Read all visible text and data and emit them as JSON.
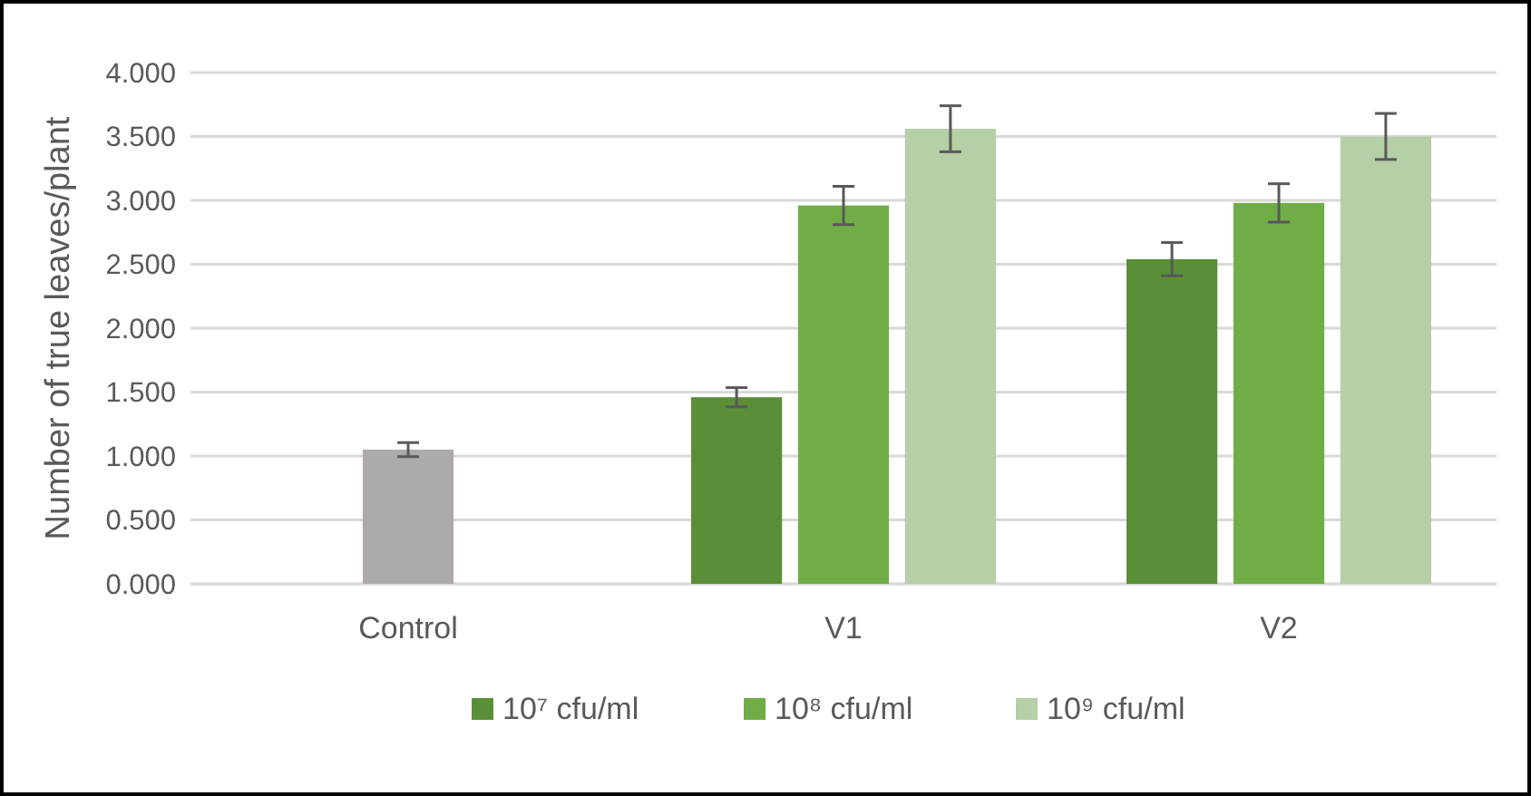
{
  "chart_data": {
    "type": "bar",
    "ylabel": "Number of true leaves/plant",
    "categories": [
      "Control",
      "V1",
      "V2"
    ],
    "series": [
      {
        "name": "10⁷ cfu/ml",
        "color": "#5b8f37",
        "values": [
          null,
          1.46,
          2.54
        ],
        "errors": [
          null,
          0.075,
          0.13
        ]
      },
      {
        "name": "10⁸ cfu/ml",
        "color": "#70ad47",
        "colors": [
          "#aeaaaa",
          "#70ad47",
          "#70ad47"
        ],
        "values": [
          1.05,
          2.96,
          2.98
        ],
        "errors": [
          0.055,
          0.15,
          0.15
        ]
      },
      {
        "name": "10⁹ cfu/ml",
        "color": "#b5cfa6",
        "values": [
          null,
          3.56,
          3.5
        ],
        "errors": [
          null,
          0.18,
          0.18
        ]
      }
    ],
    "ylim": [
      0,
      4
    ],
    "yticks": [
      {
        "value": 0,
        "label": "0.000"
      },
      {
        "value": 0.5,
        "label": "0.500"
      },
      {
        "value": 1,
        "label": "1.000"
      },
      {
        "value": 1.5,
        "label": "1.500"
      },
      {
        "value": 2,
        "label": "2.000"
      },
      {
        "value": 2.5,
        "label": "2.500"
      },
      {
        "value": 3,
        "label": "3.000"
      },
      {
        "value": 3.5,
        "label": "3.500"
      },
      {
        "value": 4,
        "label": "4.000"
      }
    ],
    "grid": "y",
    "legend": "bottom"
  }
}
